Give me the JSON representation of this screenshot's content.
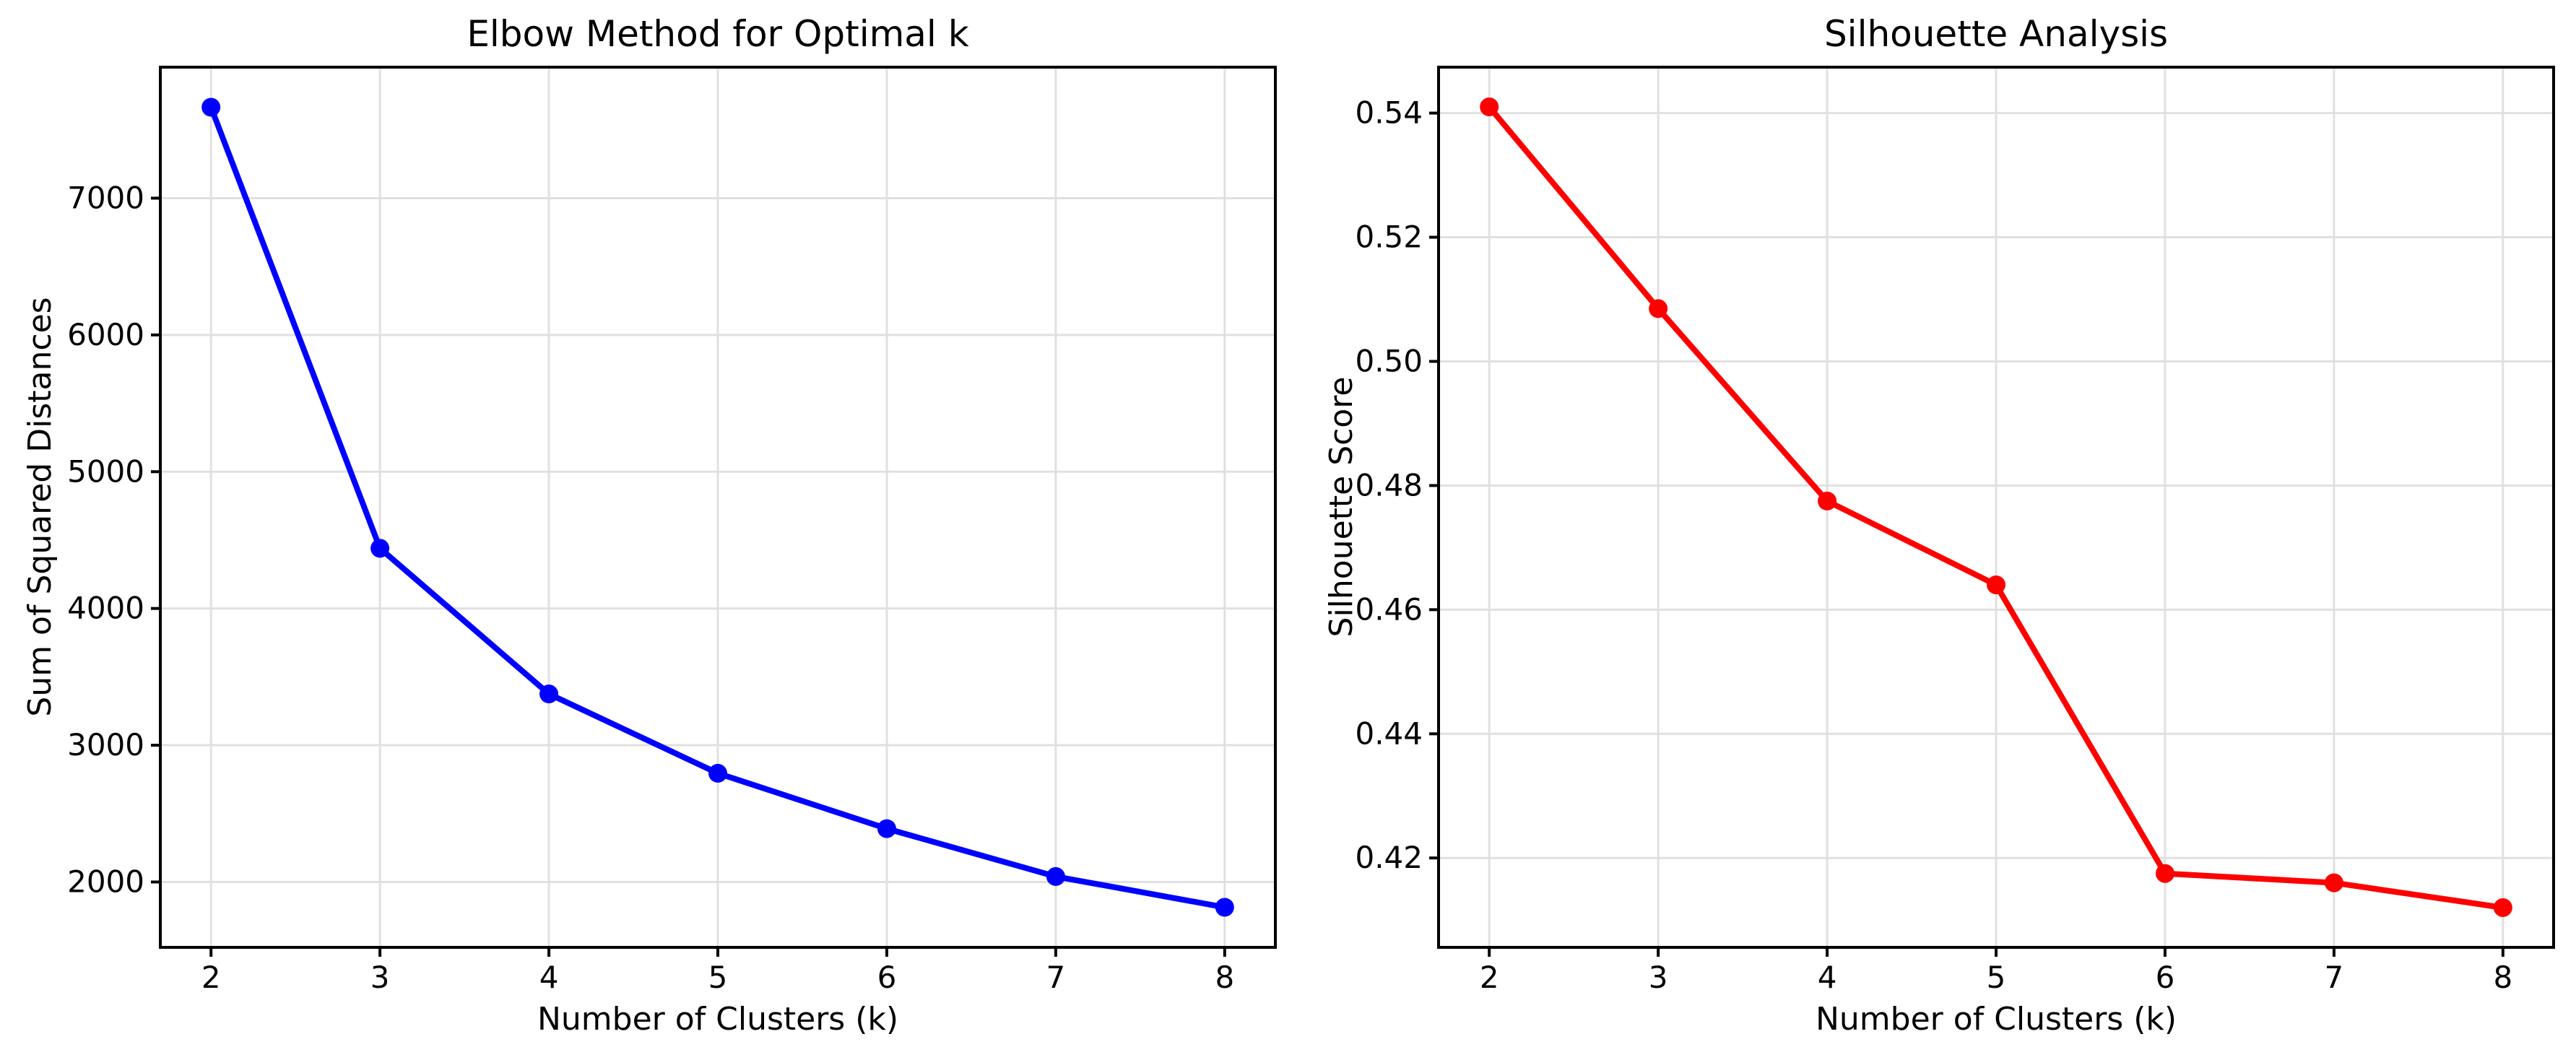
{
  "figure": {
    "background": "#ffffff",
    "text_color": "#000000",
    "grid_color": "#e0e0e0",
    "spine_color": "#000000"
  },
  "chart_data": [
    {
      "type": "line",
      "title": "Elbow Method for Optimal k",
      "xlabel": "Number of Clusters (k)",
      "ylabel": "Sum of Squared Distances",
      "line_color": "#0000ff",
      "marker": "o",
      "grid": true,
      "legend": "none",
      "x": [
        2,
        3,
        4,
        5,
        6,
        7,
        8
      ],
      "y": [
        7665,
        4440,
        3375,
        2795,
        2390,
        2040,
        1815
      ],
      "xlim": [
        1.7,
        8.3
      ],
      "ylim": [
        1522,
        7958
      ],
      "xticks": [
        2,
        3,
        4,
        5,
        6,
        7,
        8
      ],
      "xtick_labels": [
        "2",
        "3",
        "4",
        "5",
        "6",
        "7",
        "8"
      ],
      "yticks": [
        2000,
        3000,
        4000,
        5000,
        6000,
        7000
      ],
      "ytick_labels": [
        "2000",
        "3000",
        "4000",
        "5000",
        "6000",
        "7000"
      ]
    },
    {
      "type": "line",
      "title": "Silhouette Analysis",
      "xlabel": "Number of Clusters (k)",
      "ylabel": "Silhouette Score",
      "line_color": "#ff0000",
      "marker": "o",
      "grid": true,
      "legend": "none",
      "x": [
        2,
        3,
        4,
        5,
        6,
        7,
        8
      ],
      "y": [
        0.541,
        0.5085,
        0.4775,
        0.464,
        0.4175,
        0.416,
        0.412
      ],
      "xlim": [
        1.7,
        8.3
      ],
      "ylim": [
        0.4056,
        0.5474
      ],
      "xticks": [
        2,
        3,
        4,
        5,
        6,
        7,
        8
      ],
      "xtick_labels": [
        "2",
        "3",
        "4",
        "5",
        "6",
        "7",
        "8"
      ],
      "yticks": [
        0.42,
        0.44,
        0.46,
        0.48,
        0.5,
        0.52,
        0.54
      ],
      "ytick_labels": [
        "0.42",
        "0.44",
        "0.46",
        "0.48",
        "0.50",
        "0.52",
        "0.54"
      ]
    }
  ]
}
